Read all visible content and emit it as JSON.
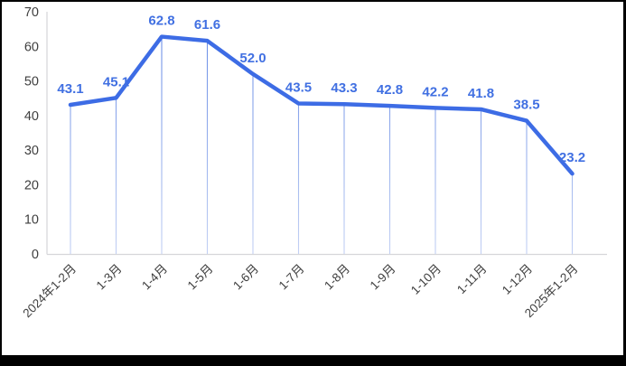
{
  "chart_data": {
    "type": "line",
    "title": "",
    "xlabel": "",
    "ylabel": "",
    "categories": [
      "2024年1-2月",
      "1-3月",
      "1-4月",
      "1-5月",
      "1-6月",
      "1-7月",
      "1-8月",
      "1-9月",
      "1-10月",
      "1-11月",
      "1-12月",
      "2025年1-2月"
    ],
    "values": [
      43.1,
      45.1,
      62.8,
      61.6,
      52.0,
      43.5,
      43.3,
      42.8,
      42.2,
      41.8,
      38.5,
      23.2
    ],
    "point_labels": [
      "43.1",
      "45.1",
      "62.8",
      "61.6",
      "52.0",
      "43.5",
      "43.3",
      "42.8",
      "42.2",
      "41.8",
      "38.5",
      "23.2"
    ],
    "ylim": [
      0,
      70
    ],
    "y_ticks": [
      "0",
      "10",
      "20",
      "30",
      "40",
      "50",
      "60",
      "70"
    ],
    "grid": false,
    "legend": false,
    "x_tick_rotation_deg": -45,
    "colors": {
      "series_line": "#3d6ce5",
      "data_label": "#4170e2",
      "drop_line_top": "#6c8fe6",
      "drop_line_bottom": "#c3d1f4",
      "axis_line": "#d6d6d9",
      "axis_text": "#3f3f3f",
      "plot_background": "#ffffff",
      "frame_border": "#000000"
    }
  }
}
